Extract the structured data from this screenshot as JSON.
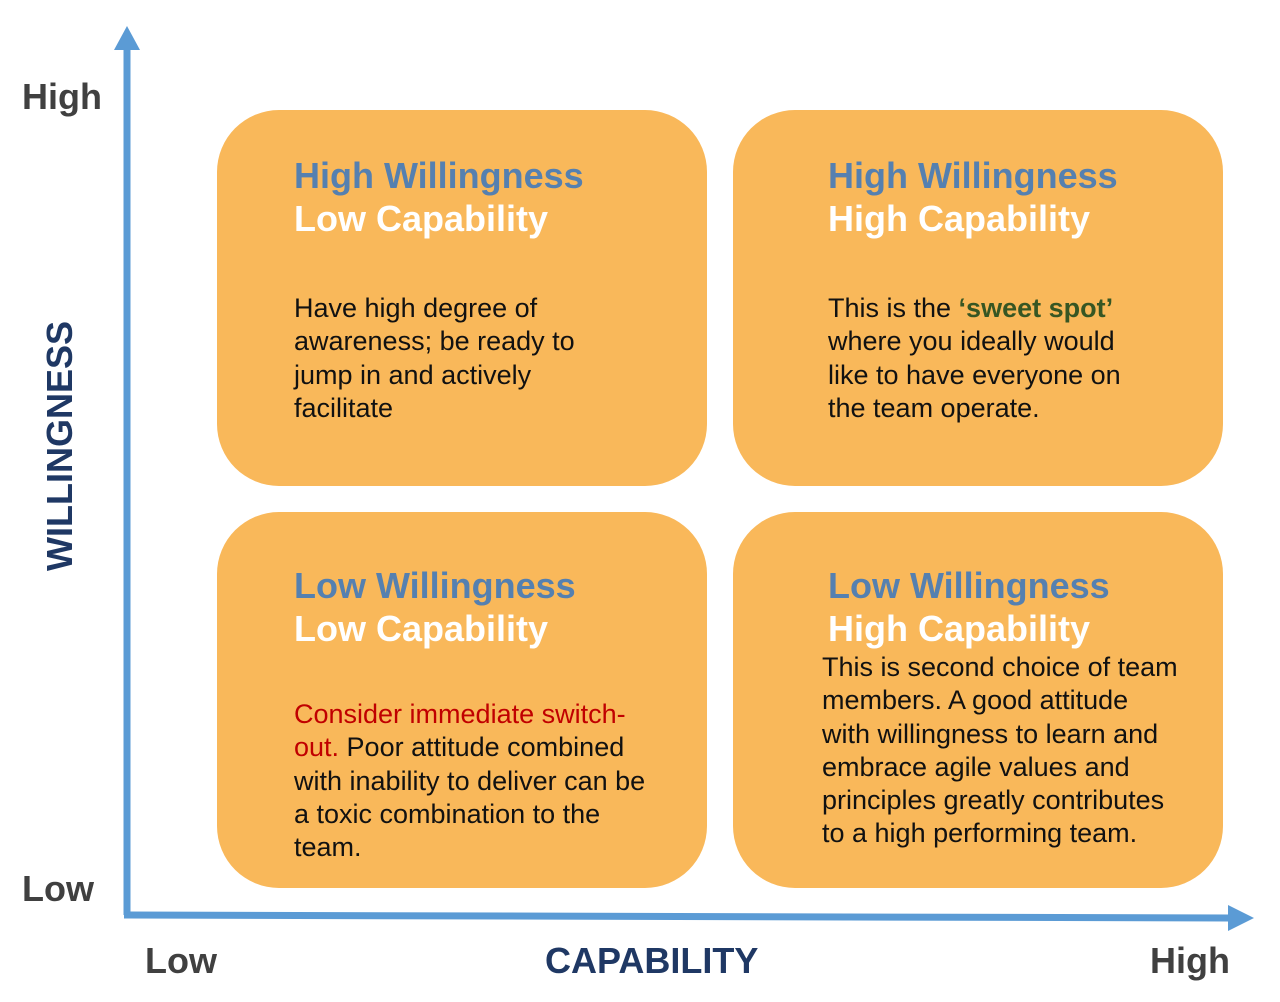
{
  "axes": {
    "y_title": "WILLINGNESS",
    "x_title": "CAPABILITY",
    "y_high": "High",
    "y_low": "Low",
    "x_low": "Low",
    "x_high": "High",
    "color": "#5B9BD5"
  },
  "quadrants": {
    "top_left": {
      "title_line1": "High Willingness",
      "title_line2": "Low Capability",
      "body": "Have high degree of awareness; be ready to jump in and actively facilitate"
    },
    "top_right": {
      "title_line1": "High Willingness",
      "title_line2": "High Capability",
      "body_pre": "This is the ",
      "body_highlight": "‘sweet spot’",
      "body_post": " where you ideally would like to have everyone on the team operate."
    },
    "bottom_left": {
      "title_line1": "Low Willingness",
      "title_line2": "Low Capability",
      "body_highlight": "Consider immediate switch-out.",
      "body_post": " Poor attitude combined with inability to deliver can be a toxic combination to the team."
    },
    "bottom_right": {
      "title_line1": "Low Willingness",
      "title_line2": "High Capability",
      "body": "This is second choice of team members. A good attitude with willingness to learn and embrace agile values and principles greatly contributes to a high performing team."
    }
  },
  "colors": {
    "box": "#F9B85A",
    "title_blue": "#5580B0",
    "white": "#FFFFFF",
    "highlight_green": "#375623",
    "highlight_red": "#C00000",
    "axis_title": "#1F3864"
  }
}
